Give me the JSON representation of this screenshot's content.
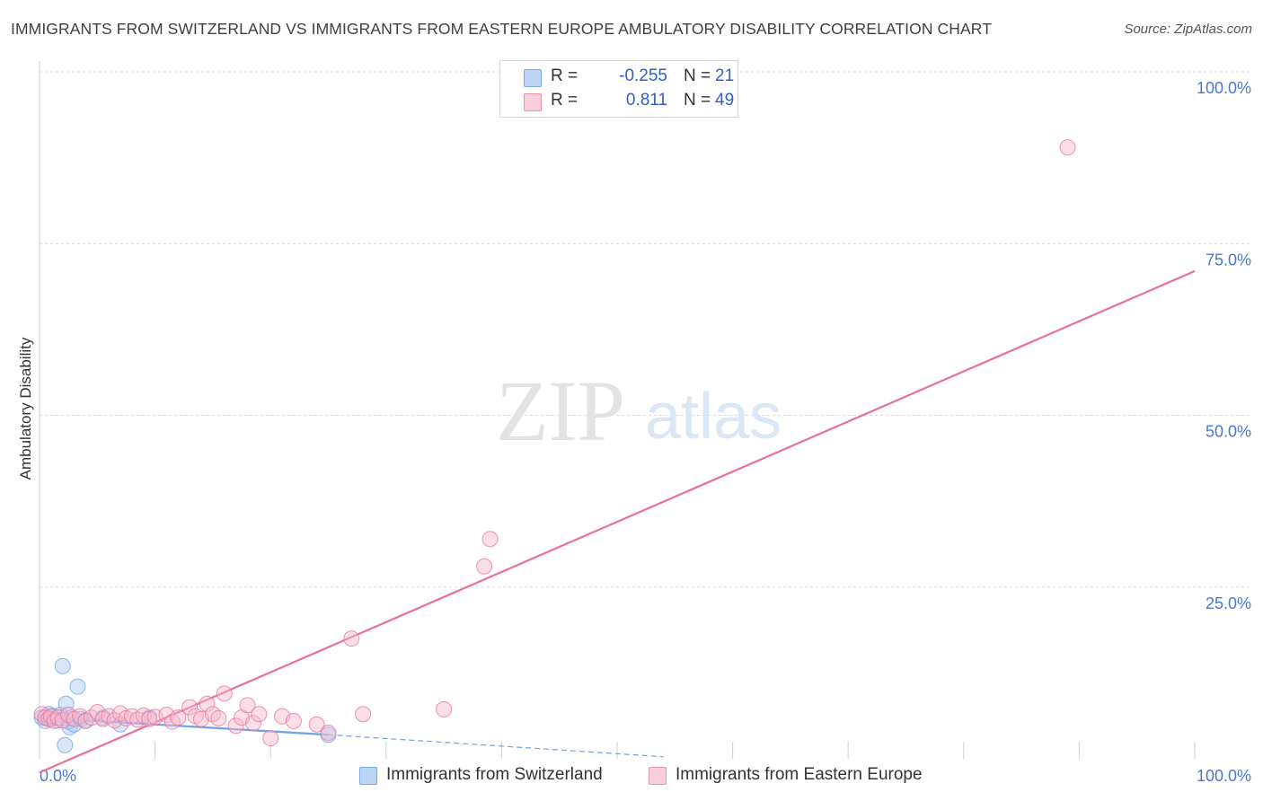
{
  "title": "IMMIGRANTS FROM SWITZERLAND VS IMMIGRANTS FROM EASTERN EUROPE AMBULATORY DISABILITY CORRELATION CHART",
  "source": "Source: ZipAtlas.com",
  "watermark": {
    "zip": "ZIP",
    "atlas": "atlas"
  },
  "legend_stats": [
    {
      "r_label": "R =",
      "r_value": "-0.255",
      "n_label": "N =",
      "n_value": "21",
      "color": "#a8c8f0"
    },
    {
      "r_label": "R =",
      "r_value": "0.811",
      "n_label": "N =",
      "n_value": "49",
      "color": "#f6b9cc"
    }
  ],
  "chart_data": {
    "type": "scatter",
    "title": "IMMIGRANTS FROM SWITZERLAND VS IMMIGRANTS FROM EASTERN EUROPE AMBULATORY DISABILITY CORRELATION CHART",
    "xlabel": "",
    "ylabel": "Ambulatory Disability",
    "xlim": [
      0,
      100
    ],
    "ylim": [
      0,
      100
    ],
    "x_tick_labels": [
      "0.0%",
      "100.0%"
    ],
    "y_ticks": [
      25,
      50,
      75,
      100
    ],
    "y_tick_labels": [
      "25.0%",
      "50.0%",
      "75.0%",
      "100.0%"
    ],
    "grid": true,
    "legend_position": "bottom",
    "series": [
      {
        "name": "Immigrants from Switzerland",
        "color": "#6fa0e6",
        "fill": "#a8c8f0",
        "points": [
          [
            0.2,
            6.0
          ],
          [
            0.5,
            5.5
          ],
          [
            0.8,
            6.5
          ],
          [
            1.0,
            5.8
          ],
          [
            1.2,
            6.2
          ],
          [
            1.5,
            5.6
          ],
          [
            1.8,
            6.4
          ],
          [
            2.0,
            13.5
          ],
          [
            2.2,
            2.0
          ],
          [
            2.5,
            5.4
          ],
          [
            2.3,
            8.0
          ],
          [
            2.6,
            4.6
          ],
          [
            2.8,
            6.0
          ],
          [
            3.0,
            5.0
          ],
          [
            3.3,
            10.5
          ],
          [
            3.6,
            5.8
          ],
          [
            4.0,
            5.6
          ],
          [
            5.5,
            6.0
          ],
          [
            7.0,
            5.0
          ],
          [
            9.5,
            6.0
          ],
          [
            25.0,
            3.5
          ]
        ],
        "trendline": {
          "x": [
            0,
            25
          ],
          "y": [
            6.0,
            3.5
          ],
          "extension": {
            "x": [
              25,
              54
            ],
            "y": [
              3.5,
              0.3
            ]
          }
        }
      },
      {
        "name": "Immigrants from Eastern Europe",
        "color": "#e8709a",
        "fill": "#f6b9cc",
        "points": [
          [
            0.2,
            6.5
          ],
          [
            0.5,
            6.0
          ],
          [
            0.8,
            5.8
          ],
          [
            1.0,
            6.2
          ],
          [
            1.3,
            5.5
          ],
          [
            1.6,
            6.0
          ],
          [
            2.0,
            5.6
          ],
          [
            2.5,
            6.4
          ],
          [
            3.0,
            5.8
          ],
          [
            3.5,
            6.2
          ],
          [
            4.0,
            5.5
          ],
          [
            4.5,
            6.0
          ],
          [
            5.0,
            6.8
          ],
          [
            5.5,
            5.8
          ],
          [
            6.0,
            6.2
          ],
          [
            6.5,
            5.6
          ],
          [
            7.0,
            6.6
          ],
          [
            7.5,
            5.9
          ],
          [
            8.0,
            6.2
          ],
          [
            8.5,
            5.7
          ],
          [
            9.0,
            6.3
          ],
          [
            9.5,
            5.8
          ],
          [
            10.0,
            6.1
          ],
          [
            11.0,
            6.4
          ],
          [
            11.5,
            5.4
          ],
          [
            12.0,
            6.0
          ],
          [
            13.0,
            7.5
          ],
          [
            13.5,
            6.2
          ],
          [
            14.0,
            5.8
          ],
          [
            14.5,
            8.0
          ],
          [
            15.0,
            6.5
          ],
          [
            15.5,
            5.9
          ],
          [
            16.0,
            9.5
          ],
          [
            17.0,
            4.8
          ],
          [
            17.5,
            6.0
          ],
          [
            18.0,
            7.8
          ],
          [
            18.5,
            5.2
          ],
          [
            19.0,
            6.5
          ],
          [
            20.0,
            3.0
          ],
          [
            21.0,
            6.2
          ],
          [
            22.0,
            5.5
          ],
          [
            24.0,
            5.0
          ],
          [
            25.0,
            3.8
          ],
          [
            27.0,
            17.5
          ],
          [
            28.0,
            6.5
          ],
          [
            35.0,
            7.2
          ],
          [
            38.5,
            28.0
          ],
          [
            39.0,
            32.0
          ],
          [
            89.0,
            89.0
          ]
        ],
        "trendline": {
          "x": [
            0,
            100
          ],
          "y": [
            -2.0,
            71.0
          ]
        }
      }
    ]
  }
}
